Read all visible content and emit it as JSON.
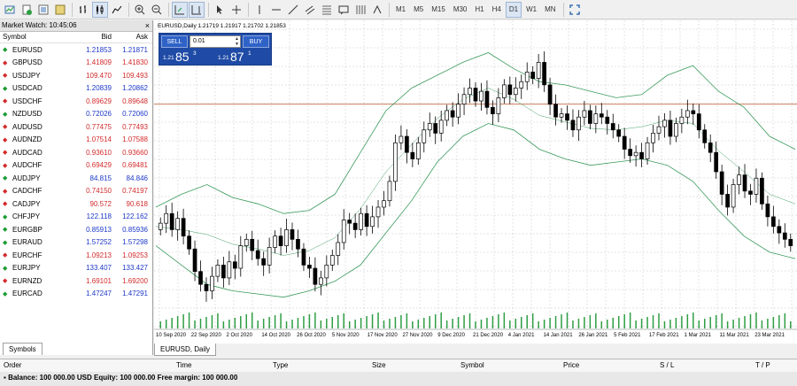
{
  "toolbar": {
    "timeframes": [
      "M1",
      "M5",
      "M15",
      "M30",
      "H1",
      "H4",
      "D1",
      "W1",
      "MN"
    ],
    "active_timeframe": "D1"
  },
  "market_watch": {
    "title": "Market Watch: 10:45:06",
    "close_glyph": "×",
    "headers": {
      "symbol": "Symbol",
      "bid": "Bid",
      "ask": "Ask"
    },
    "rows": [
      {
        "symbol": "EURUSD",
        "bid": "1.21853",
        "ask": "1.21871",
        "dir": "up"
      },
      {
        "symbol": "GBPUSD",
        "bid": "1.41809",
        "ask": "1.41830",
        "dir": "down"
      },
      {
        "symbol": "USDJPY",
        "bid": "109.470",
        "ask": "109.493",
        "dir": "down"
      },
      {
        "symbol": "USDCAD",
        "bid": "1.20839",
        "ask": "1.20862",
        "dir": "up"
      },
      {
        "symbol": "USDCHF",
        "bid": "0.89629",
        "ask": "0.89648",
        "dir": "down"
      },
      {
        "symbol": "NZDUSD",
        "bid": "0.72026",
        "ask": "0.72060",
        "dir": "up"
      },
      {
        "symbol": "AUDUSD",
        "bid": "0.77475",
        "ask": "0.77493",
        "dir": "down"
      },
      {
        "symbol": "AUDNZD",
        "bid": "1.07514",
        "ask": "1.07588",
        "dir": "down"
      },
      {
        "symbol": "AUDCAD",
        "bid": "0.93610",
        "ask": "0.93660",
        "dir": "down"
      },
      {
        "symbol": "AUDCHF",
        "bid": "0.69429",
        "ask": "0.69481",
        "dir": "down"
      },
      {
        "symbol": "AUDJPY",
        "bid": "84.815",
        "ask": "84.846",
        "dir": "up"
      },
      {
        "symbol": "CADCHF",
        "bid": "0.74150",
        "ask": "0.74197",
        "dir": "down"
      },
      {
        "symbol": "CADJPY",
        "bid": "90.572",
        "ask": "90.618",
        "dir": "down"
      },
      {
        "symbol": "CHFJPY",
        "bid": "122.118",
        "ask": "122.162",
        "dir": "up"
      },
      {
        "symbol": "EURGBP",
        "bid": "0.85913",
        "ask": "0.85936",
        "dir": "up"
      },
      {
        "symbol": "EURAUD",
        "bid": "1.57252",
        "ask": "1.57298",
        "dir": "up"
      },
      {
        "symbol": "EURCHF",
        "bid": "1.09213",
        "ask": "1.09253",
        "dir": "down"
      },
      {
        "symbol": "EURJPY",
        "bid": "133.407",
        "ask": "133.427",
        "dir": "up"
      },
      {
        "symbol": "EURNZD",
        "bid": "1.69101",
        "ask": "1.69200",
        "dir": "down"
      },
      {
        "symbol": "EURCAD",
        "bid": "1.47247",
        "ask": "1.47291",
        "dir": "up"
      }
    ],
    "tab": "Symbols"
  },
  "chart": {
    "info": "EURUSD,Daily  1.21719 1.21917 1.21702 1.21853",
    "tab": "EURUSD, Daily",
    "trade": {
      "sell_label": "SELL",
      "buy_label": "BUY",
      "lot": "0.01",
      "sell_prefix": "1.21",
      "sell_big": "85",
      "sell_sup": "3",
      "buy_prefix": "1.21",
      "buy_big": "87",
      "buy_sup": "1"
    },
    "colors": {
      "bands": "#3a9a5c",
      "hline": "#d08060",
      "grid": "#c8c8c8",
      "volume": "#2f9e44",
      "candle": "#000000"
    }
  },
  "chart_data": {
    "type": "candlestick",
    "symbol": "EURUSD",
    "timeframe": "Daily",
    "x_tick_labels": [
      "10 Sep 2020",
      "22 Sep 2020",
      "2 Oct 2020",
      "14 Oct 2020",
      "26 Oct 2020",
      "5 Nov 2020",
      "17 Nov 2020",
      "27 Nov 2020",
      "9 Dec 2020",
      "21 Dec 2020",
      "4 Jan 2021",
      "14 Jan 2021",
      "26 Jan 2021",
      "5 Feb 2021",
      "17 Feb 2021",
      "1 Mar 2021",
      "11 Mar 2021",
      "23 Mar 2021"
    ],
    "close_series": [
      1.183,
      1.186,
      1.181,
      1.1845,
      1.179,
      1.175,
      1.168,
      1.164,
      1.162,
      1.1665,
      1.17,
      1.166,
      1.171,
      1.169,
      1.176,
      1.178,
      1.1745,
      1.172,
      1.17,
      1.1755,
      1.179,
      1.176,
      1.181,
      1.178,
      1.175,
      1.17,
      1.169,
      1.164,
      1.166,
      1.17,
      1.173,
      1.177,
      1.184,
      1.183,
      1.181,
      1.186,
      1.182,
      1.185,
      1.188,
      1.19,
      1.196,
      1.208,
      1.21,
      1.205,
      1.203,
      1.208,
      1.212,
      1.214,
      1.211,
      1.215,
      1.218,
      1.216,
      1.22,
      1.223,
      1.225,
      1.221,
      1.224,
      1.219,
      1.217,
      1.222,
      1.226,
      1.223,
      1.225,
      1.227,
      1.23,
      1.228,
      1.233,
      1.226,
      1.22,
      1.216,
      1.217,
      1.215,
      1.212,
      1.216,
      1.218,
      1.214,
      1.217,
      1.216,
      1.214,
      1.212,
      1.21,
      1.206,
      1.204,
      1.205,
      1.203,
      1.208,
      1.211,
      1.213,
      1.215,
      1.21,
      1.214,
      1.216,
      1.218,
      1.217,
      1.212,
      1.208,
      1.205,
      1.199,
      1.192,
      1.188,
      1.195,
      1.198,
      1.193,
      1.192,
      1.197,
      1.189,
      1.185,
      1.182,
      1.18,
      1.178,
      1.176
    ],
    "upper_band_anchor_prices": [
      1.188,
      1.192,
      1.195,
      1.191,
      1.189,
      1.186,
      1.187,
      1.192,
      1.205,
      1.218,
      1.225,
      1.229,
      1.233,
      1.236,
      1.231,
      1.227,
      1.226,
      1.224,
      1.222,
      1.223,
      1.229,
      1.232,
      1.224,
      1.219,
      1.21,
      1.206
    ],
    "lower_band_anchor_prices": [
      1.176,
      1.17,
      1.164,
      1.162,
      1.161,
      1.16,
      1.162,
      1.165,
      1.17,
      1.18,
      1.19,
      1.202,
      1.21,
      1.214,
      1.212,
      1.206,
      1.203,
      1.201,
      1.202,
      1.203,
      1.201,
      1.196,
      1.187,
      1.179,
      1.174,
      1.172
    ],
    "horizontal_line_price": 1.22,
    "ylim": [
      1.158,
      1.24
    ]
  },
  "terminal": {
    "headers": [
      "Order",
      "Time",
      "Type",
      "Size",
      "Symbol",
      "Price",
      "S / L",
      "T / P"
    ],
    "balance": "Balance: 100 000.00 USD  Equity: 100 000.00  Free margin: 100 000.00"
  }
}
